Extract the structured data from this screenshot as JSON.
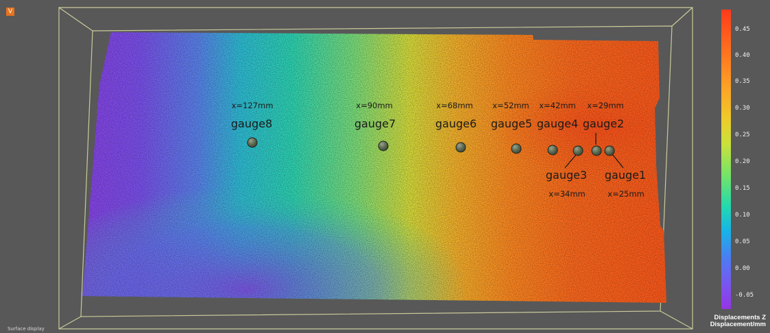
{
  "viewer": {
    "corner_badge": "V",
    "mode_label": "Surface display"
  },
  "gauges": [
    {
      "id": "gauge8",
      "label": "gauge8",
      "position": "x=127mm"
    },
    {
      "id": "gauge7",
      "label": "gauge7",
      "position": "x=90mm"
    },
    {
      "id": "gauge6",
      "label": "gauge6",
      "position": "x=68mm"
    },
    {
      "id": "gauge5",
      "label": "gauge5",
      "position": "x=52mm"
    },
    {
      "id": "gauge4",
      "label": "gauge4",
      "position": "x=42mm"
    },
    {
      "id": "gauge2",
      "label": "gauge2",
      "position": "x=29mm"
    },
    {
      "id": "gauge3",
      "label": "gauge3",
      "position": "x=34mm"
    },
    {
      "id": "gauge1",
      "label": "gauge1",
      "position": "x=25mm"
    }
  ],
  "legend": {
    "title_line1": "Displacements Z",
    "title_line2": "Displacement/mm",
    "ticks": [
      "0.45",
      "0.40",
      "0.35",
      "0.30",
      "0.25",
      "0.20",
      "0.15",
      "0.10",
      "0.05",
      "0.00",
      "-0.05"
    ],
    "colors": {
      "high": "#ff3b1a",
      "mid_high": "#ff9a25",
      "mid": "#c9e23b",
      "mid_low": "#22d8b0",
      "low": "#4b7df3",
      "lowest": "#9435e6"
    }
  }
}
